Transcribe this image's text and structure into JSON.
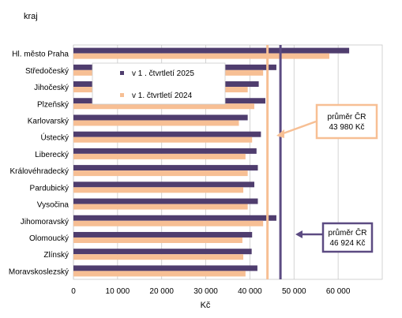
{
  "chart_data": {
    "type": "bar",
    "orientation": "horizontal",
    "ylabel": "kraj",
    "xlabel": "Kč",
    "xlim": [
      0,
      70000
    ],
    "xticks": [
      0,
      10000,
      20000,
      30000,
      40000,
      50000,
      60000
    ],
    "xtick_labels": [
      "0",
      "10 000",
      "20 000",
      "30 000",
      "40 000",
      "50 000",
      "60 000"
    ],
    "grid": "vertical",
    "legend_placement": "upper-left inside plot",
    "categories": [
      "Hl. město Praha",
      "Středočeský",
      "Jihočeský",
      "Plzeňský",
      "Karlovarský",
      "Ústecký",
      "Liberecký",
      "Královéhradecký",
      "Pardubický",
      "Vysočina",
      "Jihomoravský",
      "Olomoucký",
      "Zlínský",
      "Moravskoslezský"
    ],
    "series": [
      {
        "name": "v 1 . čtvrtletí 2025",
        "color": "#4f3d6e",
        "values": [
          62500,
          46000,
          42000,
          43500,
          39500,
          42500,
          41500,
          41800,
          41000,
          41800,
          46000,
          40500,
          40400,
          41700
        ]
      },
      {
        "name": "v 1. čtvrtletí 2024",
        "color": "#f7bf94",
        "values": [
          58000,
          43000,
          39500,
          41000,
          37500,
          40500,
          39000,
          39500,
          38500,
          39500,
          43000,
          38300,
          38500,
          39000
        ]
      }
    ],
    "reference_lines": [
      {
        "label_line1": "průměr ČR",
        "label_line2": "43 980 Kč",
        "value": 43980,
        "color": "#f7bf94"
      },
      {
        "label_line1": "průměr ČR",
        "label_line2": "46 924 Kč",
        "value": 46924,
        "color": "#5c4b82"
      }
    ]
  }
}
